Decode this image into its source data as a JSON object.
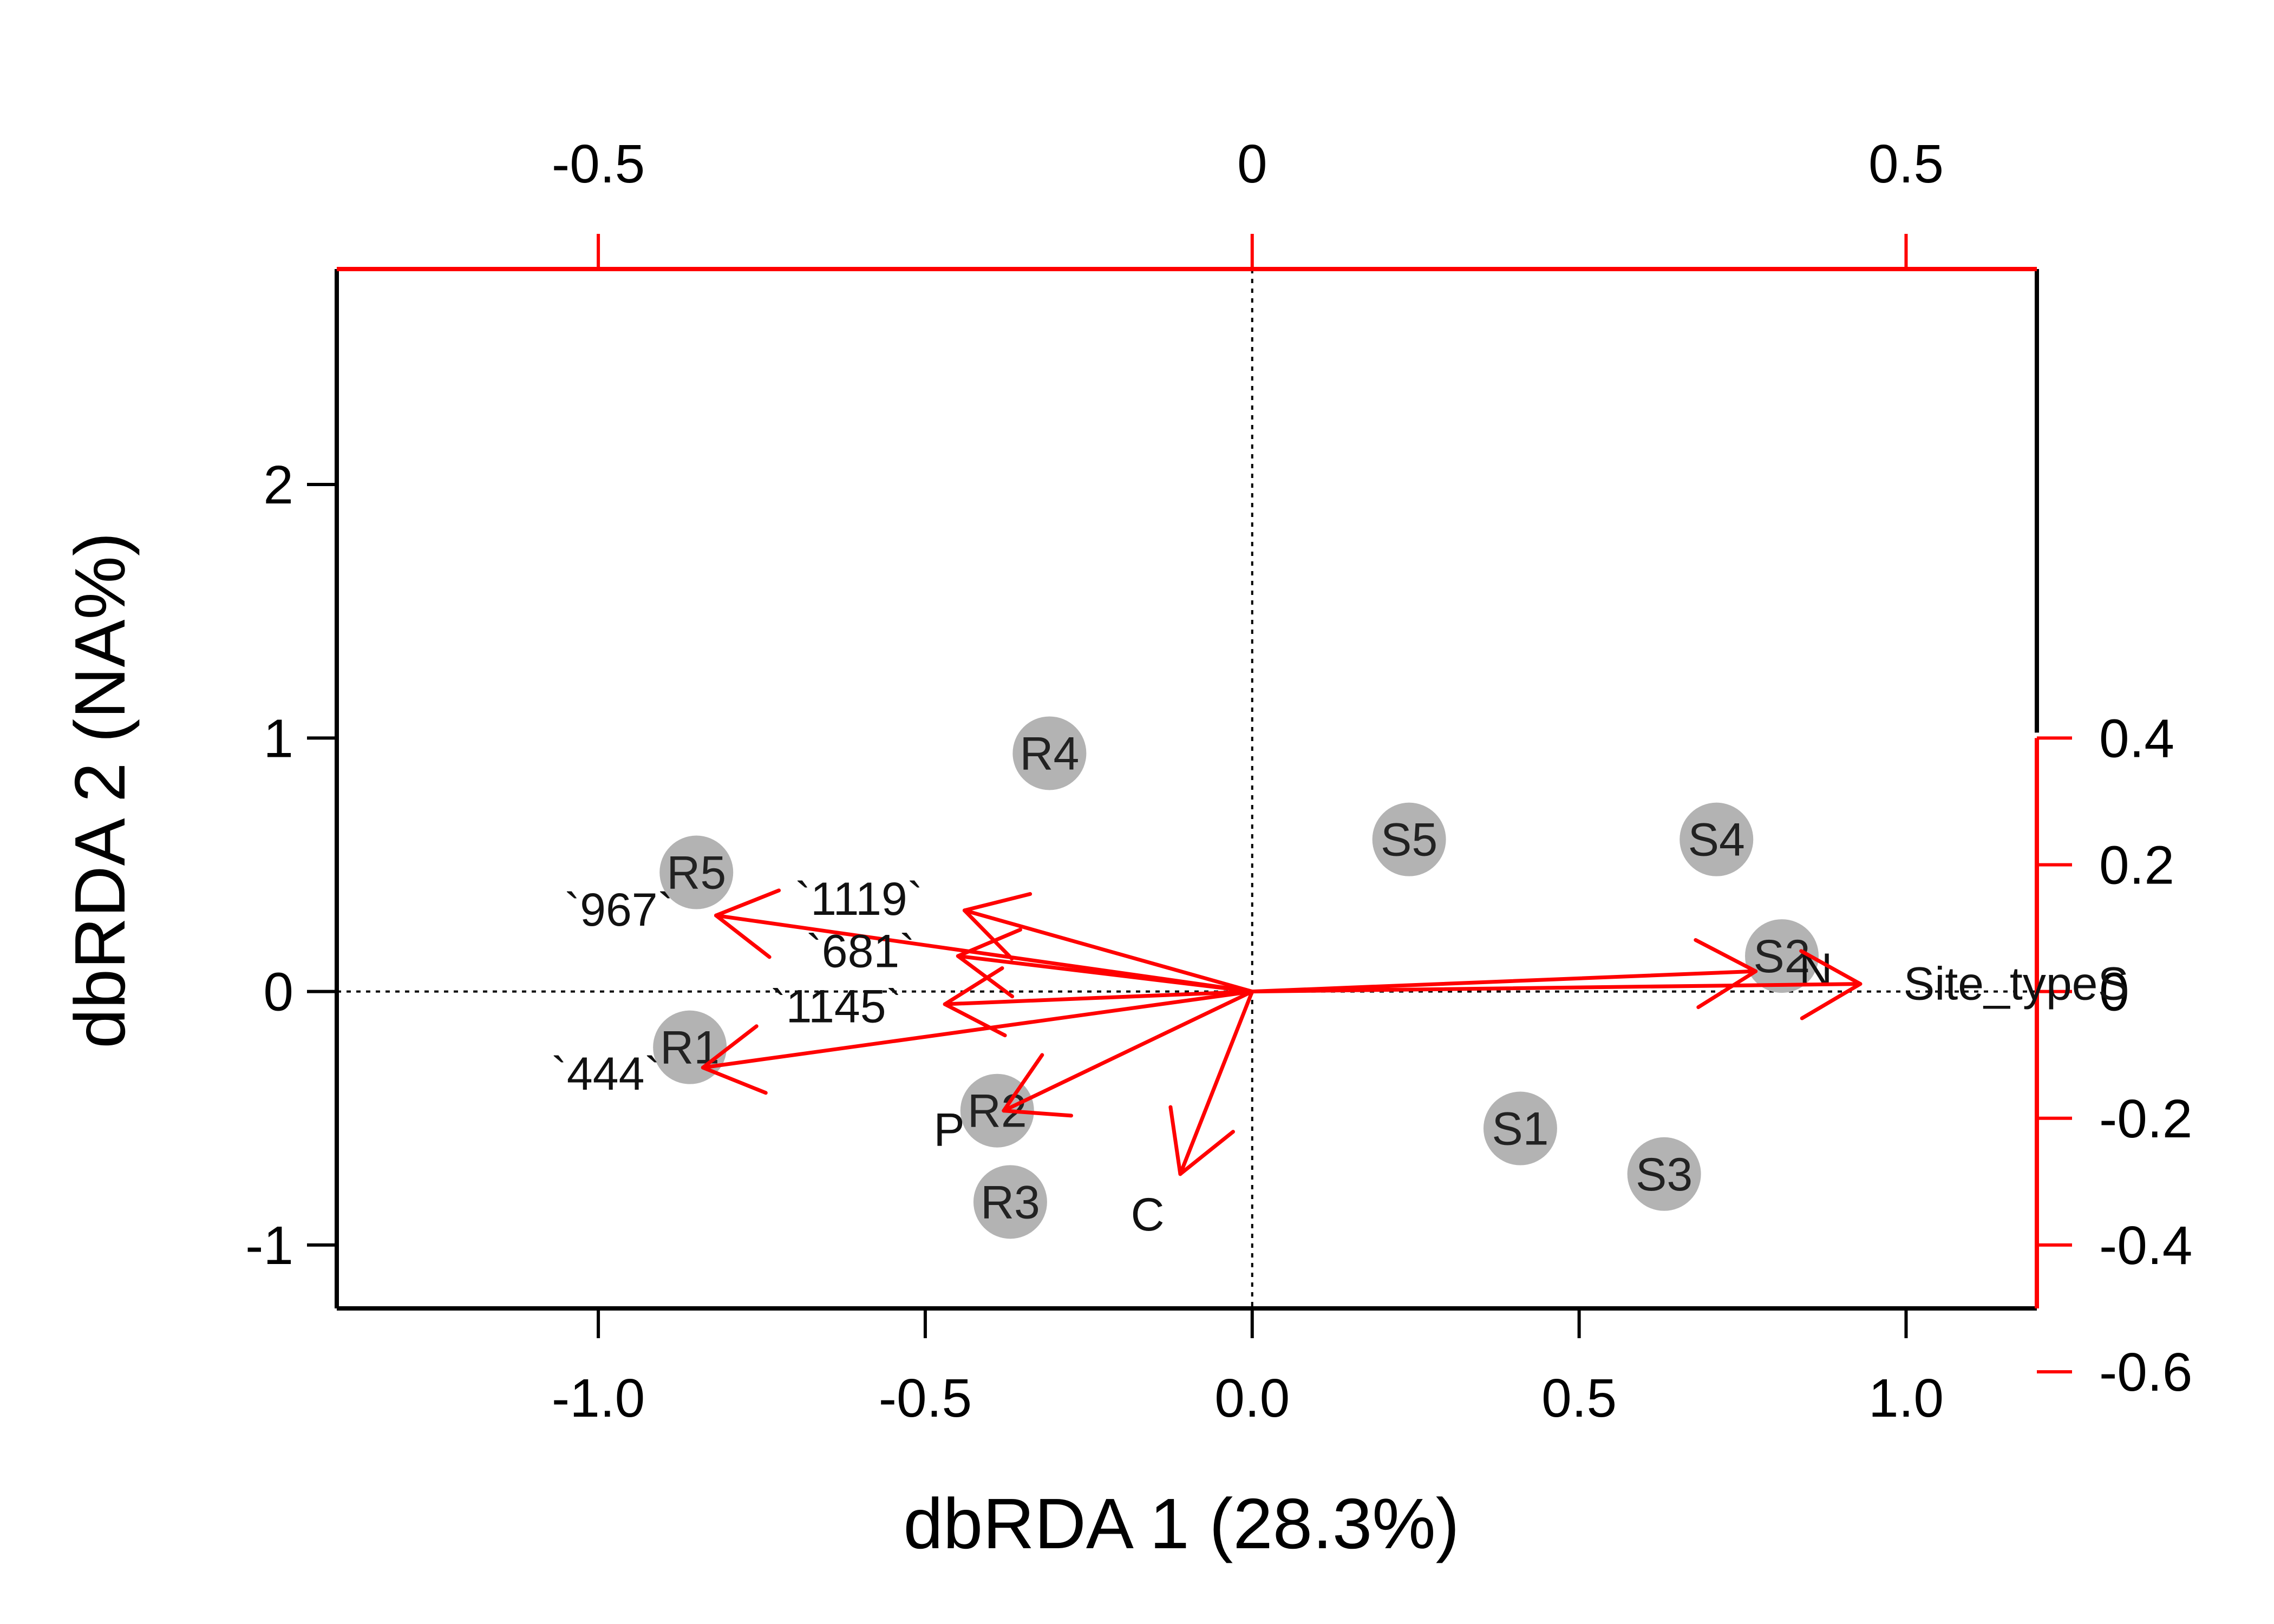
{
  "chart_data": {
    "type": "scatter",
    "subtype": "dbRDA biplot",
    "title": "",
    "xlabel": "dbRDA 1 (28.3%)",
    "ylabel": "dbRDA 2 (NA%)",
    "xlim": [
      -1.4,
      1.2
    ],
    "ylim": [
      -1.25,
      2.85
    ],
    "x_ticks": [
      {
        "value": -1.0,
        "label": "-1.0"
      },
      {
        "value": -0.5,
        "label": "-0.5"
      },
      {
        "value": 0.0,
        "label": "0.0"
      },
      {
        "value": 0.5,
        "label": "0.5"
      },
      {
        "value": 1.0,
        "label": "1.0"
      }
    ],
    "y_ticks": [
      {
        "value": -1,
        "label": "-1"
      },
      {
        "value": 0,
        "label": "0"
      },
      {
        "value": 1,
        "label": "1"
      },
      {
        "value": 2,
        "label": "2"
      }
    ],
    "top_axis": {
      "color": "#ff0000",
      "scale_per_unit": 0.5,
      "ticks": [
        {
          "value": -0.5,
          "label": "-0.5"
        },
        {
          "value": 0,
          "label": "0"
        },
        {
          "value": 0.5,
          "label": "0.5"
        }
      ]
    },
    "right_axis": {
      "color": "#ff0000",
      "scale_per_unit": 0.4,
      "ticks": [
        {
          "value": 0.4,
          "label": "0.4"
        },
        {
          "value": 0.2,
          "label": "0.2"
        },
        {
          "value": 0,
          "label": "0"
        },
        {
          "value": -0.2,
          "label": "-0.2"
        },
        {
          "value": -0.4,
          "label": "-0.4"
        },
        {
          "value": -0.6,
          "label": "-0.6"
        }
      ]
    },
    "reference_lines": {
      "x": 0,
      "y": 0,
      "style": "dotted"
    },
    "sites": [
      {
        "label": "R4",
        "x": -0.31,
        "y": 0.94
      },
      {
        "label": "R5",
        "x": -0.85,
        "y": 0.47
      },
      {
        "label": "R1",
        "x": -0.86,
        "y": -0.22
      },
      {
        "label": "R2",
        "x": -0.39,
        "y": -0.47
      },
      {
        "label": "R3",
        "x": -0.37,
        "y": -0.83
      },
      {
        "label": "S5",
        "x": 0.24,
        "y": 0.6
      },
      {
        "label": "S4",
        "x": 0.71,
        "y": 0.6
      },
      {
        "label": "S2",
        "x": 0.81,
        "y": 0.14
      },
      {
        "label": "S1",
        "x": 0.41,
        "y": -0.54
      },
      {
        "label": "S3",
        "x": 0.63,
        "y": -0.72
      }
    ],
    "site_color": "#b3b3b3",
    "vectors": [
      {
        "label": "`967`",
        "x": -0.82,
        "y": 0.3
      },
      {
        "label": "`1119`",
        "x": -0.44,
        "y": 0.32
      },
      {
        "label": "`681`",
        "x": -0.45,
        "y": 0.14
      },
      {
        "label": "`1145`",
        "x": -0.47,
        "y": -0.05
      },
      {
        "label": "`444`",
        "x": -0.84,
        "y": -0.3
      },
      {
        "label": "P",
        "x": -0.38,
        "y": -0.47
      },
      {
        "label": "C",
        "x": -0.11,
        "y": -0.72
      },
      {
        "label": "N",
        "x": 0.77,
        "y": 0.08
      },
      {
        "label": "Site_typeS",
        "x": 0.93,
        "y": 0.03
      }
    ],
    "vector_color": "#ff0000"
  }
}
